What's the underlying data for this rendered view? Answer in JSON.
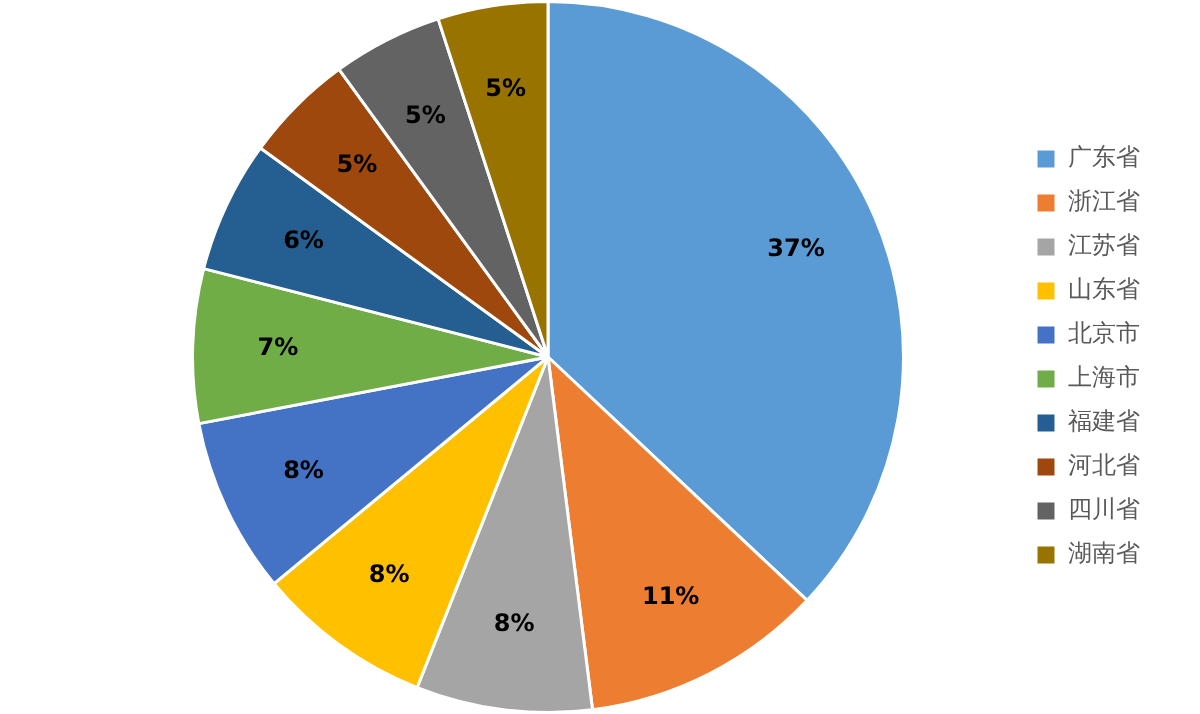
{
  "chart_data": {
    "type": "pie",
    "categories": [
      "广东省",
      "浙江省",
      "江苏省",
      "山东省",
      "北京市",
      "上海市",
      "福建省",
      "河北省",
      "四川省",
      "湖南省"
    ],
    "values": [
      37,
      11,
      8,
      8,
      8,
      7,
      6,
      5,
      5,
      5
    ],
    "colors": [
      "#5b9bd5",
      "#ed7d31",
      "#a5a5a5",
      "#ffc000",
      "#4472c4",
      "#70ad47",
      "#255e91",
      "#9e480e",
      "#636363",
      "#997300"
    ],
    "value_labels": [
      "37%",
      "11%",
      "8%",
      "8%",
      "8%",
      "7%",
      "6%",
      "5%",
      "5%",
      "5%"
    ],
    "legend": "right"
  }
}
